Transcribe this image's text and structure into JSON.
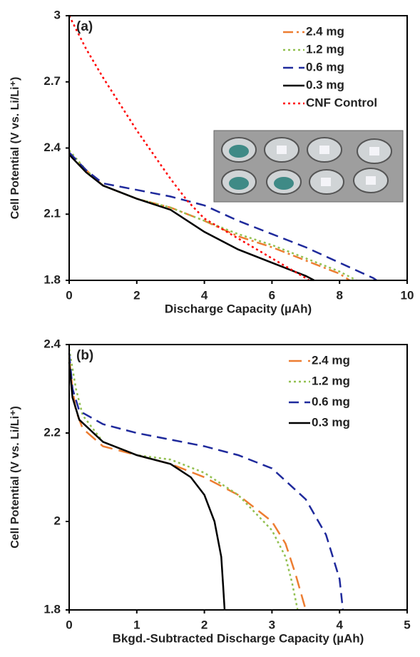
{
  "chart_data": [
    {
      "type": "line",
      "label": "(a)",
      "xlabel": "Discharge Capacity (µAh)",
      "ylabel": "Cell Potential (V vs. Li/Li⁺)",
      "xlim": [
        0,
        10
      ],
      "xticks": [
        0,
        2,
        4,
        6,
        8,
        10
      ],
      "ylim": [
        1.8,
        3
      ],
      "yticks": [
        3,
        2.7,
        2.4,
        2.1,
        1.8
      ],
      "legend": "upper right",
      "series": [
        {
          "name": "2.4 mg",
          "color": "#ed7d31",
          "style": "dashdot",
          "x": [
            0,
            0.5,
            1,
            2,
            3,
            4,
            5,
            6,
            7,
            8,
            8.3
          ],
          "values": [
            2.38,
            2.3,
            2.23,
            2.17,
            2.13,
            2.07,
            2.0,
            1.95,
            1.89,
            1.83,
            1.8
          ]
        },
        {
          "name": "1.2 mg",
          "color": "#92c050",
          "style": "dotted",
          "x": [
            0,
            0.5,
            1,
            2,
            3,
            4,
            5,
            6,
            7,
            8,
            8.5
          ],
          "values": [
            2.39,
            2.3,
            2.23,
            2.17,
            2.13,
            2.07,
            2.01,
            1.96,
            1.9,
            1.84,
            1.8
          ]
        },
        {
          "name": "0.6 mg",
          "color": "#1f2a9c",
          "style": "dashed",
          "x": [
            0,
            0.5,
            1,
            2,
            3,
            4,
            5,
            6,
            7,
            8,
            9,
            9.1
          ],
          "values": [
            2.38,
            2.3,
            2.24,
            2.21,
            2.18,
            2.14,
            2.07,
            2.01,
            1.95,
            1.88,
            1.81,
            1.8
          ]
        },
        {
          "name": "0.3 mg",
          "color": "#000000",
          "style": "solid",
          "x": [
            0,
            0.5,
            1,
            2,
            3,
            4,
            5,
            6,
            7,
            7.25
          ],
          "values": [
            2.37,
            2.29,
            2.23,
            2.17,
            2.12,
            2.02,
            1.94,
            1.88,
            1.82,
            1.8
          ]
        },
        {
          "name": "CNF Control",
          "color": "#ff0000",
          "style": "dotted",
          "x": [
            0,
            0.5,
            1,
            1.5,
            2,
            2.5,
            3,
            3.5,
            4,
            5,
            6,
            7,
            7.1
          ],
          "values": [
            3.0,
            2.85,
            2.72,
            2.6,
            2.48,
            2.37,
            2.26,
            2.16,
            2.08,
            1.99,
            1.9,
            1.81,
            1.8
          ]
        }
      ]
    },
    {
      "type": "line",
      "label": "(b)",
      "xlabel": "Bkgd.-Subtracted Discharge Capacity (µAh)",
      "ylabel": "Cell Potential (V vs. Li/Li⁺)",
      "xlim": [
        0,
        5
      ],
      "xticks": [
        0,
        1,
        2,
        3,
        4,
        5
      ],
      "ylim": [
        1.8,
        2.4
      ],
      "yticks": [
        2.4,
        2.2,
        2,
        1.8
      ],
      "legend": "upper right",
      "series": [
        {
          "name": "2.4 mg",
          "color": "#ed7d31",
          "style": "longdash",
          "x": [
            0,
            0.05,
            0.1,
            0.2,
            0.5,
            1,
            1.5,
            2,
            2.5,
            3,
            3.2,
            3.35,
            3.5
          ],
          "values": [
            2.37,
            2.3,
            2.25,
            2.21,
            2.17,
            2.15,
            2.13,
            2.1,
            2.06,
            2.0,
            1.95,
            1.88,
            1.8
          ]
        },
        {
          "name": "1.2 mg",
          "color": "#92c050",
          "style": "dotted",
          "x": [
            0,
            0.1,
            0.2,
            0.5,
            1,
            1.5,
            2,
            2.5,
            3,
            3.2,
            3.3,
            3.38
          ],
          "values": [
            2.39,
            2.3,
            2.24,
            2.18,
            2.15,
            2.14,
            2.11,
            2.06,
            1.98,
            1.92,
            1.86,
            1.8
          ]
        },
        {
          "name": "0.6 mg",
          "color": "#1f2a9c",
          "style": "dashed",
          "x": [
            0,
            0.05,
            0.15,
            0.5,
            1,
            2,
            2.5,
            3,
            3.5,
            3.8,
            4,
            4.05
          ],
          "values": [
            2.38,
            2.3,
            2.25,
            2.22,
            2.2,
            2.17,
            2.15,
            2.12,
            2.05,
            1.97,
            1.87,
            1.8
          ]
        },
        {
          "name": "0.3 mg",
          "color": "#000000",
          "style": "solid",
          "x": [
            0,
            0.05,
            0.15,
            0.5,
            1,
            1.5,
            1.8,
            2,
            2.15,
            2.25,
            2.28,
            2.3
          ],
          "values": [
            2.36,
            2.28,
            2.23,
            2.18,
            2.15,
            2.13,
            2.1,
            2.06,
            2.0,
            1.92,
            1.85,
            1.8
          ]
        }
      ]
    }
  ]
}
